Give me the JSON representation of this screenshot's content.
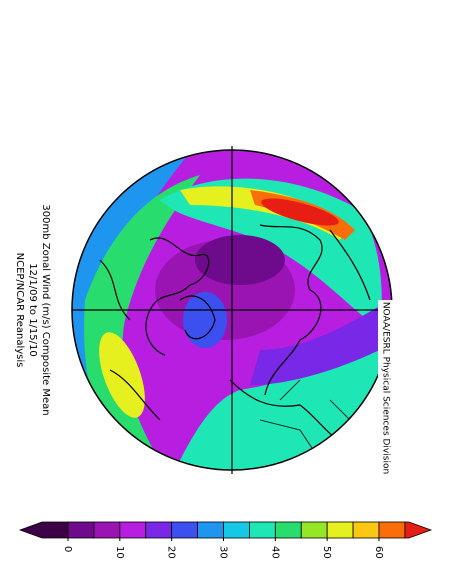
{
  "title": "300mb Zonal Wind (m/s) Composite Mean",
  "subtitle": "12/1/09 to 1/15/10",
  "source": "NCEP/NCAR Reanalysis",
  "credit": "NOAA/ESRL Physical Sciences Division",
  "colorbar": {
    "ticks": [
      0,
      10,
      20,
      30,
      40,
      50,
      60
    ],
    "step": 5,
    "colors": [
      "#3c0046",
      "#6e0a8c",
      "#9a14b4",
      "#b81ee0",
      "#7828e6",
      "#3c50f0",
      "#1e96f0",
      "#14c8e6",
      "#1ee6b4",
      "#28dc6e",
      "#96e628",
      "#e6f01e",
      "#fac814",
      "#fa6e0a",
      "#e61e14"
    ]
  }
}
